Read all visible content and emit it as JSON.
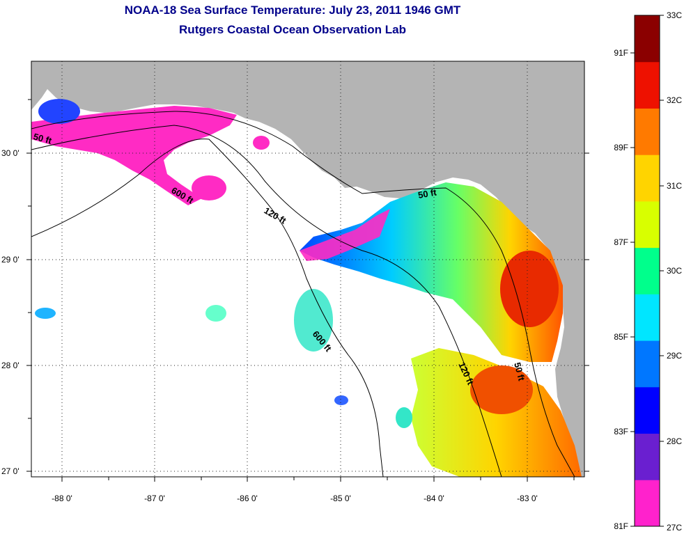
{
  "title_line1": "NOAA-18 Sea Surface Temperature:  July 23, 2011 1946 GMT",
  "title_line2": "Rutgers Coastal Ocean Observation Lab",
  "map": {
    "lon_labels": [
      "-88 0'",
      "-87 0'",
      "-86 0'",
      "-85 0'",
      "-84 0'",
      "-83 0'"
    ],
    "lat_labels": [
      "30 0'",
      "29 0'",
      "28 0'",
      "27 0'"
    ],
    "contour_labels": [
      "50 ft",
      "600 ft",
      "120 ft",
      "50 ft",
      "600 ft",
      "120 ft",
      "50 ft"
    ],
    "colors": {
      "land": "#b4b4b4",
      "cloud": "#ffffff",
      "magenta": "#ff2bc4"
    }
  },
  "colorbar": {
    "celsius_labels": [
      "33C",
      "32C",
      "31C",
      "30C",
      "29C",
      "28C",
      "27C"
    ],
    "fahrenheit_labels": [
      "91F",
      "89F",
      "87F",
      "85F",
      "83F",
      "81F"
    ],
    "range_c": [
      27,
      33
    ],
    "colors": [
      "#ff22cc",
      "#6a1fd0",
      "#0000ff",
      "#0077ff",
      "#00e6ff",
      "#00ff8c",
      "#d8ff00",
      "#ffd400",
      "#ff7a00",
      "#ee1100",
      "#8b0000"
    ]
  }
}
